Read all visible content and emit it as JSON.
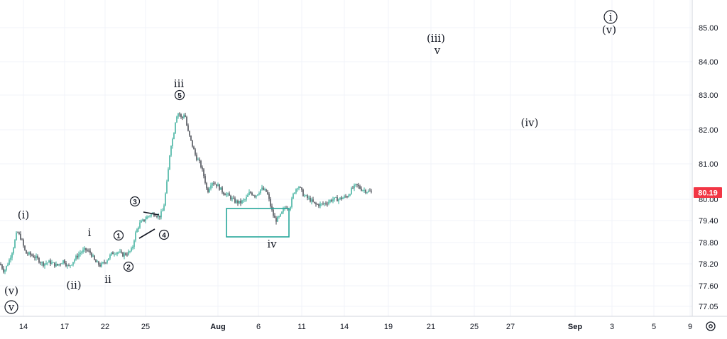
{
  "chart_data": {
    "type": "candlestick",
    "current_price": "80.19",
    "price_color": "#f23645",
    "up_color": "#089981",
    "down_color": "#131722",
    "y_axis_ticks": [
      "85.00",
      "84.00",
      "83.00",
      "82.00",
      "81.00",
      "80.00",
      "79.40",
      "78.80",
      "78.20",
      "77.60",
      "77.05"
    ],
    "x_axis_ticks": [
      {
        "label": "14",
        "bold": false
      },
      {
        "label": "17",
        "bold": false
      },
      {
        "label": "22",
        "bold": false
      },
      {
        "label": "25",
        "bold": false
      },
      {
        "label": "Aug",
        "bold": true
      },
      {
        "label": "6",
        "bold": false
      },
      {
        "label": "11",
        "bold": false
      },
      {
        "label": "14",
        "bold": false
      },
      {
        "label": "19",
        "bold": false
      },
      {
        "label": "21",
        "bold": false
      },
      {
        "label": "25",
        "bold": false
      },
      {
        "label": "27",
        "bold": false
      },
      {
        "label": "Sep",
        "bold": true
      },
      {
        "label": "3",
        "bold": false
      },
      {
        "label": "5",
        "bold": false
      },
      {
        "label": "9",
        "bold": false
      }
    ],
    "price_path": [
      [
        0,
        78.2
      ],
      [
        6,
        78.0
      ],
      [
        12,
        78.25
      ],
      [
        18,
        78.6
      ],
      [
        24,
        79.1
      ],
      [
        30,
        78.9
      ],
      [
        36,
        78.5
      ],
      [
        44,
        78.45
      ],
      [
        52,
        78.35
      ],
      [
        60,
        78.2
      ],
      [
        70,
        78.25
      ],
      [
        80,
        78.15
      ],
      [
        90,
        78.3
      ],
      [
        96,
        78.1
      ],
      [
        104,
        78.3
      ],
      [
        112,
        78.5
      ],
      [
        120,
        78.6
      ],
      [
        128,
        78.5
      ],
      [
        134,
        78.25
      ],
      [
        142,
        78.15
      ],
      [
        150,
        78.3
      ],
      [
        158,
        78.5
      ],
      [
        166,
        78.55
      ],
      [
        172,
        78.45
      ],
      [
        180,
        78.5
      ],
      [
        186,
        78.6
      ],
      [
        190,
        79.0
      ],
      [
        196,
        79.3
      ],
      [
        202,
        79.4
      ],
      [
        210,
        79.55
      ],
      [
        218,
        79.6
      ],
      [
        224,
        79.5
      ],
      [
        230,
        79.7
      ],
      [
        236,
        80.6
      ],
      [
        240,
        81.5
      ],
      [
        244,
        81.8
      ],
      [
        248,
        82.4
      ],
      [
        252,
        82.5
      ],
      [
        256,
        82.3
      ],
      [
        260,
        82.5
      ],
      [
        264,
        82.0
      ],
      [
        270,
        81.6
      ],
      [
        276,
        81.2
      ],
      [
        282,
        81.0
      ],
      [
        288,
        80.6
      ],
      [
        292,
        80.2
      ],
      [
        298,
        80.5
      ],
      [
        306,
        80.4
      ],
      [
        314,
        80.2
      ],
      [
        322,
        80.1
      ],
      [
        330,
        79.95
      ],
      [
        338,
        79.9
      ],
      [
        346,
        80.0
      ],
      [
        352,
        80.2
      ],
      [
        360,
        80.1
      ],
      [
        368,
        80.3
      ],
      [
        376,
        80.2
      ],
      [
        384,
        79.6
      ],
      [
        388,
        79.4
      ],
      [
        394,
        79.5
      ],
      [
        402,
        79.8
      ],
      [
        408,
        79.75
      ],
      [
        414,
        80.2
      ],
      [
        420,
        80.4
      ],
      [
        428,
        80.1
      ],
      [
        436,
        80.0
      ],
      [
        444,
        79.85
      ],
      [
        452,
        79.85
      ],
      [
        460,
        79.9
      ],
      [
        468,
        80.0
      ],
      [
        476,
        80.0
      ],
      [
        484,
        80.05
      ],
      [
        490,
        80.1
      ],
      [
        496,
        80.3
      ],
      [
        502,
        80.4
      ],
      [
        508,
        80.3
      ],
      [
        514,
        80.25
      ],
      [
        522,
        80.2
      ]
    ],
    "annotations": {
      "green_box_label": "iv",
      "wave_labels": [
        "(i)",
        "(ii)",
        "(iii)",
        "(iv)",
        "(v)",
        "(v)",
        "i",
        "ii",
        "iii",
        "iv",
        "v",
        "3",
        "2",
        "1",
        "4",
        "5"
      ],
      "circled_v": "v",
      "circled_i": "i"
    }
  },
  "ui": {
    "settings_icon": "gear-icon"
  }
}
